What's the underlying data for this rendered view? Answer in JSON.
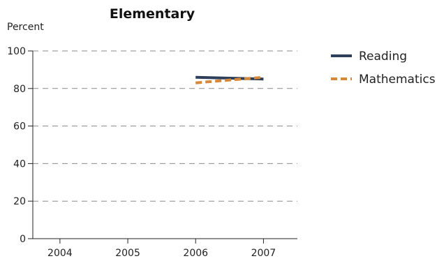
{
  "chart_data": {
    "type": "line",
    "title": "Elementary",
    "ylabel": "Percent",
    "xlabel": "",
    "x": [
      2004,
      2005,
      2006,
      2007
    ],
    "xlim": [
      2003.6,
      2007.5
    ],
    "ylim": [
      0,
      100
    ],
    "yticks": [
      0,
      20,
      40,
      60,
      80,
      100
    ],
    "grid": true,
    "legend": "right",
    "series": [
      {
        "name": "Reading",
        "color": "#2e3f5c",
        "dash": "solid",
        "points": [
          {
            "x": 2006,
            "y": 86
          },
          {
            "x": 2007,
            "y": 85
          }
        ]
      },
      {
        "name": "Mathematics",
        "color": "#d4893a",
        "dash": "dashed",
        "points": [
          {
            "x": 2006,
            "y": 83
          },
          {
            "x": 2007,
            "y": 86
          }
        ]
      }
    ]
  }
}
